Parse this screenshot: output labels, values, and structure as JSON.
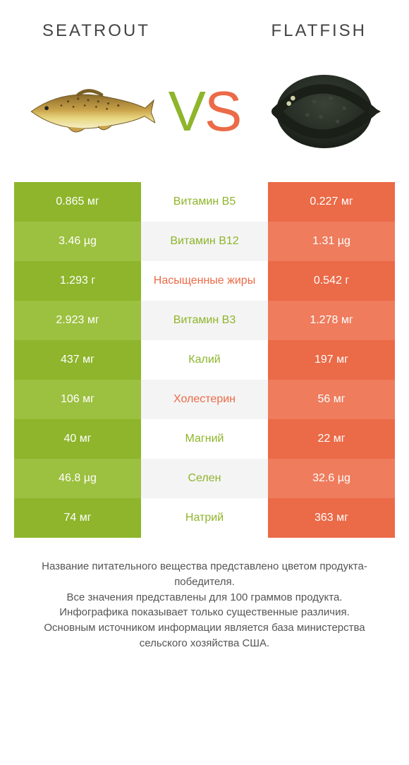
{
  "colors": {
    "left": "#8eb52b",
    "right": "#eb6a47",
    "left_alt": "#9cc03f",
    "right_alt": "#ee7c5d",
    "row_bg_a": "#ffffff",
    "row_bg_b": "#f4f4f4"
  },
  "header": {
    "left_title": "Seatrout",
    "right_title": "Flatfish"
  },
  "vs": {
    "v": "V",
    "s": "S"
  },
  "rows": [
    {
      "label": "Витамин B5",
      "left": "0.865 мг",
      "right": "0.227 мг",
      "winner": "left"
    },
    {
      "label": "Витамин B12",
      "left": "3.46 µg",
      "right": "1.31 µg",
      "winner": "left"
    },
    {
      "label": "Насыщенные жиры",
      "left": "1.293 г",
      "right": "0.542 г",
      "winner": "right"
    },
    {
      "label": "Витамин B3",
      "left": "2.923 мг",
      "right": "1.278 мг",
      "winner": "left"
    },
    {
      "label": "Калий",
      "left": "437 мг",
      "right": "197 мг",
      "winner": "left"
    },
    {
      "label": "Холестерин",
      "left": "106 мг",
      "right": "56 мг",
      "winner": "right"
    },
    {
      "label": "Магний",
      "left": "40 мг",
      "right": "22 мг",
      "winner": "left"
    },
    {
      "label": "Селен",
      "left": "46.8 µg",
      "right": "32.6 µg",
      "winner": "left"
    },
    {
      "label": "Натрий",
      "left": "74 мг",
      "right": "363 мг",
      "winner": "left"
    }
  ],
  "footer": {
    "line1": "Название питательного вещества представлено цветом продукта-победителя.",
    "line2": "Все значения представлены для 100 граммов продукта.",
    "line3": "Инфографика показывает только существенные различия.",
    "line4": "Основным источником информации является база министерства сельского хозяйства США."
  }
}
